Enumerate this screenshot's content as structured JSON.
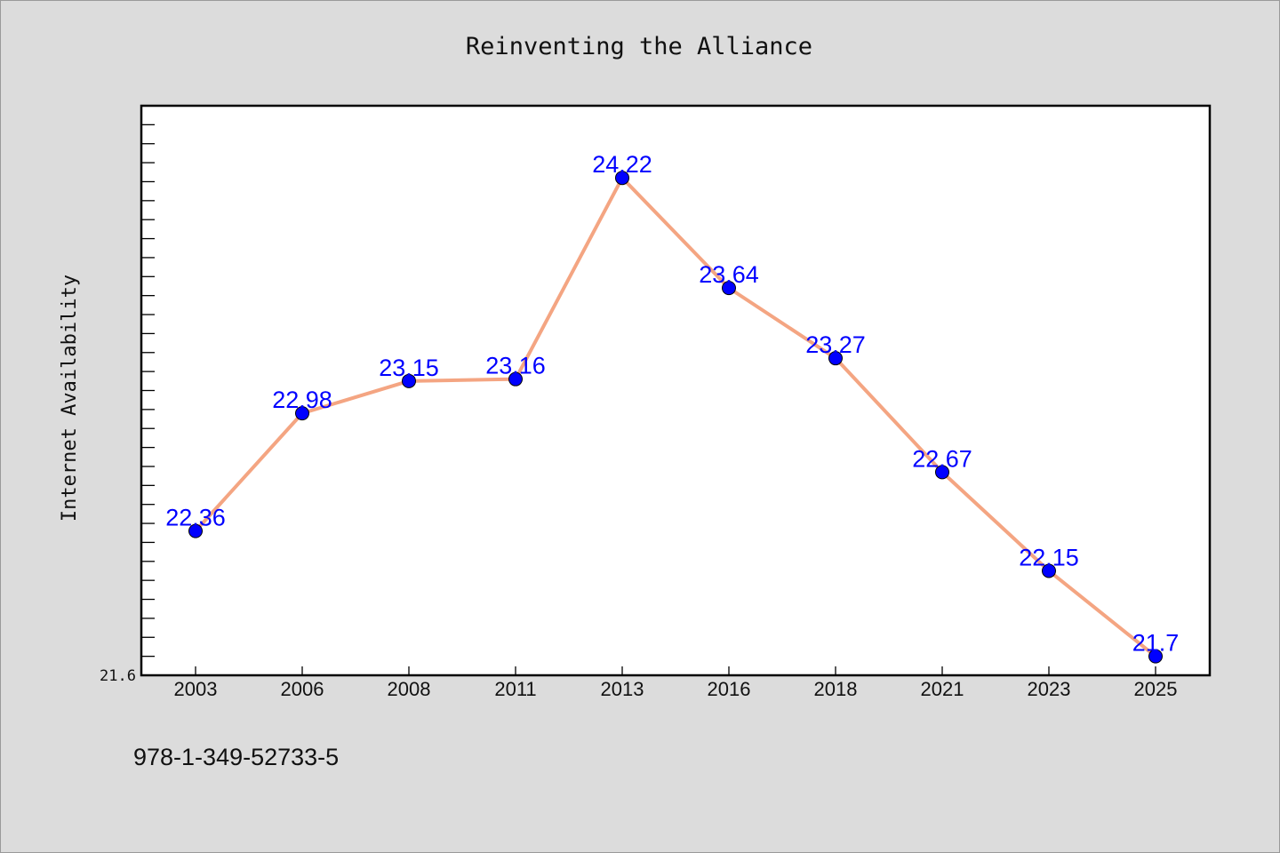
{
  "chart_data": {
    "type": "line",
    "title": "Reinventing the Alliance",
    "ylabel": "Internet Availability",
    "xlabel": "",
    "categories": [
      "2003",
      "2006",
      "2008",
      "2011",
      "2013",
      "2016",
      "2018",
      "2021",
      "2023",
      "2025"
    ],
    "series": [
      {
        "values": [
          22.36,
          22.98,
          23.15,
          23.16,
          24.22,
          23.64,
          23.27,
          22.67,
          22.15,
          21.7
        ],
        "data_labels": [
          "22.36",
          "22.98",
          "23.15",
          "23.16",
          "24.22",
          "23.64",
          "23.27",
          "22.67",
          "22.15",
          "21.7"
        ]
      }
    ],
    "ylim": [
      21.6,
      24.6
    ],
    "y_tick_labels": [
      "21.6"
    ],
    "grid": false,
    "colors": {
      "line": "#f4a582",
      "marker": "#0000ff",
      "data_label": "#0000ff",
      "background": "#dcdcdc",
      "plot_area": "#ffffff"
    }
  },
  "footer": {
    "isbn": "978-1-349-52733-5"
  }
}
